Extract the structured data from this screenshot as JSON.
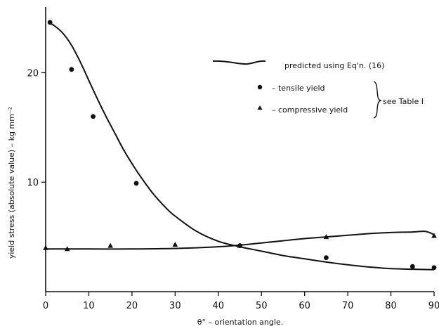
{
  "chart_data": {
    "type": "line",
    "xlabel": "θ° – orientation angle.",
    "ylabel": "yield stress (absolute value) – kg mm⁻²",
    "xlim": [
      0,
      90
    ],
    "ylim": [
      0,
      26
    ],
    "x_ticks": [
      0,
      10,
      20,
      30,
      40,
      50,
      60,
      70,
      80,
      90
    ],
    "y_ticks": [
      10,
      20
    ],
    "grid": false,
    "series": [
      {
        "name": "predicted using Eq'n. (16)",
        "kind": "curve",
        "x": [
          1,
          2,
          4,
          6,
          8,
          10,
          12,
          14,
          16,
          18,
          20,
          22,
          25,
          28,
          30,
          35,
          40,
          45,
          50,
          55,
          60,
          65,
          70,
          75,
          80,
          85,
          90
        ],
        "y": [
          24.5,
          24.3,
          23.6,
          22.5,
          21.0,
          19.3,
          17.6,
          16.0,
          14.5,
          13.0,
          11.7,
          10.5,
          8.9,
          7.6,
          6.9,
          5.5,
          4.6,
          4.1,
          3.7,
          3.3,
          3.0,
          2.7,
          2.45,
          2.25,
          2.1,
          2.05,
          2.0
        ]
      },
      {
        "name": "predicted using Eq'n. (16)",
        "kind": "curve",
        "x": [
          0,
          10,
          20,
          30,
          40,
          45,
          50,
          55,
          60,
          65,
          70,
          75,
          80,
          85,
          88,
          90
        ],
        "y": [
          3.9,
          3.9,
          3.9,
          3.95,
          4.1,
          4.25,
          4.45,
          4.65,
          4.85,
          5.0,
          5.15,
          5.3,
          5.4,
          5.45,
          5.5,
          5.2
        ]
      },
      {
        "name": "tensile yield",
        "kind": "points",
        "marker": "circle",
        "x": [
          1,
          6,
          11,
          21,
          45,
          65,
          85,
          90
        ],
        "y": [
          24.6,
          20.3,
          16.0,
          9.9,
          4.2,
          3.1,
          2.3,
          2.2
        ]
      },
      {
        "name": "compressive yield",
        "kind": "points",
        "marker": "triangle",
        "x": [
          0,
          5,
          15,
          30,
          45,
          65,
          90
        ],
        "y": [
          4.0,
          3.9,
          4.2,
          4.3,
          4.2,
          5.0,
          5.1
        ]
      }
    ],
    "legend": {
      "curve_label": "predicted using Eq'n. (16)",
      "tensile_label": "– tensile yield",
      "compressive_label": "– compressive yield",
      "group_note": "see Table I"
    }
  }
}
